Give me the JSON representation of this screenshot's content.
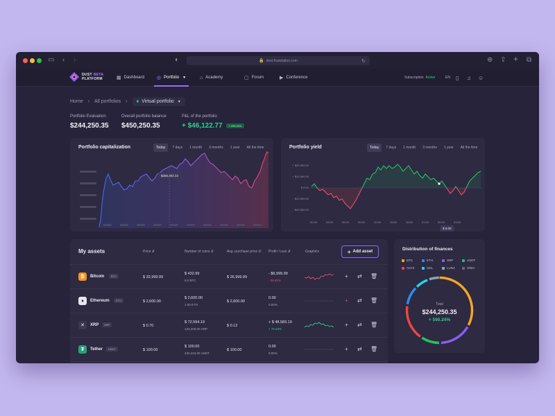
{
  "browser": {
    "url": "dust.foundation.com",
    "colors": {
      "close": "#ff5f57",
      "minimize": "#febc2e",
      "maximize": "#28c840"
    }
  },
  "nav": {
    "logo_line1": "DUST",
    "logo_beta": "BETA",
    "logo_line2": "PLATFORM",
    "items": [
      {
        "label": "Dashboard",
        "icon": "dashboard-icon"
      },
      {
        "label": "Portfolio",
        "icon": "portfolio-icon"
      },
      {
        "label": "Academy",
        "icon": "academy-icon"
      },
      {
        "label": "Forum",
        "icon": "forum-icon"
      },
      {
        "label": "Conference",
        "icon": "conference-icon"
      }
    ],
    "active_item": "Portfolio",
    "subscription_label": "Subscription",
    "subscription_status": "Active",
    "language": "EN"
  },
  "breadcrumb": {
    "home": "Home",
    "all": "All portfolios",
    "current": "Virtual portfolio"
  },
  "stats": {
    "evaluation_label": "Portfolio Evaluation",
    "evaluation_value": "$244,250.35",
    "balance_label": "Overall portfolio balance",
    "balance_value": "$450,250.35",
    "pnl_label": "P&L of the portfolio",
    "pnl_value": "+ $46,122.77",
    "pnl_badge": "+ 290.24%"
  },
  "capitalization": {
    "title": "Portfolio capitalization",
    "tabs": [
      "Today",
      "7 days",
      "1 month",
      "3 months",
      "1 year",
      "All the time"
    ],
    "active_tab": "Today",
    "tooltip": "$255,302.22"
  },
  "yield": {
    "title": "Portfolio yield",
    "tabs": [
      "Today",
      "7 days",
      "1 month",
      "3 months",
      "1 year",
      "All the time"
    ],
    "active_tab": "Today",
    "tooltip": "$ 8.00",
    "y_ticks": [
      "+ $20,000.00",
      "+ $10,000.00",
      "$ 0.00",
      "- $10,000.00",
      "- $20,000.00"
    ],
    "x_ticks": [
      "00:00",
      "03:00",
      "06:00",
      "09:00",
      "12:00",
      "15:00",
      "18:00",
      "21:00",
      "00:00",
      "03:00"
    ]
  },
  "assets": {
    "title": "My assets",
    "columns": {
      "price": "Price",
      "coins": "Number of coins",
      "avg": "Avg. purchase price",
      "pl": "Profit / Loss",
      "graphics": "Graphics"
    },
    "add_label": "Add asset",
    "rows": [
      {
        "name": "Bitcoin",
        "ticker": "BTC",
        "icon": "bitcoin-icon",
        "color": "#f7931a",
        "glyph": "₿",
        "price": "$ 32,999.99",
        "coins_value": "$ 432.99",
        "coins_amount": "9.5 BTC",
        "avg": "$ 26,999.99",
        "pl_value": "- $6,999.99",
        "pl_pct": "- 26.82%",
        "trend": "down"
      },
      {
        "name": "Ethereum",
        "ticker": "ETH",
        "icon": "ethereum-icon",
        "color": "#e7e6ef",
        "glyph": "♦",
        "price": "$ 2,600.00",
        "coins_value": "$ 2,600.00",
        "coins_amount": "1.00 ETH",
        "avg": "$ 2,600.00",
        "pl_value": "0.00",
        "pl_pct": "0.00%",
        "trend": "flat"
      },
      {
        "name": "XRP",
        "ticker": "XRP",
        "icon": "xrp-icon",
        "color": "#3a3750",
        "glyph": "✕",
        "price": "$ 0.70",
        "coins_value": "$ 72,594.19",
        "coins_amount": "123,200.00 XRP",
        "avg": "$ 0.12",
        "pl_value": "+ $ 48,583.19",
        "pl_pct": "+ 76.53%",
        "trend": "up"
      },
      {
        "name": "Tether",
        "ticker": "USDT",
        "icon": "tether-icon",
        "color": "#26a17b",
        "glyph": "₮",
        "price": "$ 100.00",
        "coins_value": "$ 100.00",
        "coins_amount": "240,434.00 USDT",
        "avg": "$ 100.00",
        "pl_value": "0.00",
        "pl_pct": "0.00%",
        "trend": "flat"
      }
    ]
  },
  "distribution": {
    "title": "Distribution of finances",
    "legend": [
      {
        "label": "BTC",
        "color": "#f5a524"
      },
      {
        "label": "ETH",
        "color": "#2e8bf0"
      },
      {
        "label": "XRP",
        "color": "#8b5cf6"
      },
      {
        "label": "USDT",
        "color": "#22c55e"
      },
      {
        "label": "AVAX",
        "color": "#ef4444"
      },
      {
        "label": "SOL",
        "color": "#22d3ee"
      },
      {
        "label": "LUNA",
        "color": "#94a3b8"
      },
      {
        "label": "Other",
        "color": "#6b6785"
      }
    ],
    "total_label": "Total",
    "total_value": "$244,250.35",
    "total_change": "+ 590.24%"
  }
}
